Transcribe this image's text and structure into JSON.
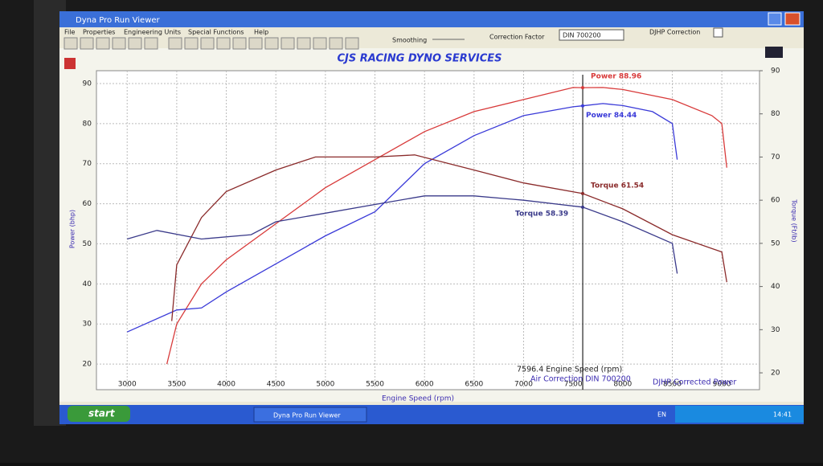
{
  "window": {
    "title": "Dyna Pro Run Viewer"
  },
  "menu": [
    "File",
    "Properties",
    "Engineering Units",
    "Special Functions",
    "Help"
  ],
  "toolbar": {
    "smoothing": "Smoothing",
    "correction_factor": "Correction Factor",
    "correction_value": "DIN 700200",
    "djhp": "DJHP Correction"
  },
  "chart_data": {
    "type": "line",
    "title": "CJS RACING DYNO SERVICES",
    "x_label": "Engine Speed (rpm)",
    "y_label": "Power (bhp)",
    "y2_label": "Torque (Ft/lb)",
    "xlim": [
      2690,
      9380
    ],
    "xticks": [
      3000,
      3500,
      4000,
      4500,
      5000,
      5500,
      6000,
      6500,
      7000,
      7500,
      8000,
      8500,
      9000
    ],
    "ylim": [
      13.6,
      93.2
    ],
    "yticks": [
      20,
      30,
      40,
      50,
      60,
      70,
      80,
      90
    ],
    "y2lim": [
      16.1,
      90
    ],
    "y2ticks": [
      20,
      30,
      40,
      50,
      60,
      70,
      80,
      90
    ],
    "grid": true,
    "cursor_x": 7596.4,
    "series": [
      {
        "name": "Power",
        "color": "#d83a3a",
        "cursor_label": "Power 88.96",
        "x": [
          3400,
          3500,
          3750,
          4000,
          4500,
          5000,
          5500,
          6000,
          6500,
          7000,
          7500,
          7596,
          7800,
          8000,
          8500,
          8900,
          9000,
          9050
        ],
        "values": [
          20,
          30,
          40,
          46,
          55,
          64,
          71,
          78,
          83,
          86,
          89,
          88.96,
          89,
          88.5,
          86,
          82,
          80,
          69
        ]
      },
      {
        "name": "Power",
        "color": "#3a3ad8",
        "cursor_label": "Power 84.44",
        "x": [
          3000,
          3500,
          3750,
          4000,
          4500,
          5000,
          5500,
          6000,
          6500,
          7000,
          7500,
          7596,
          7800,
          8000,
          8300,
          8500,
          8550
        ],
        "values": [
          28,
          33.5,
          34,
          38,
          45,
          52,
          58,
          70,
          77,
          82,
          84.2,
          84.44,
          85,
          84.5,
          83,
          80,
          71
        ]
      },
      {
        "name": "Torque",
        "color": "#8a2a2a",
        "axis": "y2",
        "cursor_label": "Torque 61.54",
        "x": [
          3450,
          3500,
          3750,
          4000,
          4500,
          4900,
          5500,
          5900,
          6500,
          7000,
          7596,
          8000,
          8500,
          9000,
          9050
        ],
        "values": [
          32,
          45,
          56,
          62,
          67,
          70,
          70,
          70.5,
          67,
          64,
          61.54,
          58,
          52,
          48,
          41
        ]
      },
      {
        "name": "Torque",
        "color": "#3a3a8a",
        "axis": "y2",
        "cursor_label": "Torque 58.39",
        "x": [
          3000,
          3300,
          3750,
          4250,
          4500,
          5000,
          5500,
          6000,
          6500,
          7000,
          7596,
          8000,
          8500,
          8550
        ],
        "values": [
          51,
          53,
          51,
          52,
          55,
          57,
          59,
          61,
          61,
          60,
          58.39,
          55,
          50,
          43
        ]
      }
    ],
    "footer": [
      "7596.4 Engine Speed (rpm)",
      "Air Correction DIN 700200",
      "DJHP Corrected Power"
    ]
  },
  "taskbar": {
    "start": "start",
    "task": "Dyna Pro Run Viewer",
    "lang": "EN",
    "clock": "14:41"
  }
}
